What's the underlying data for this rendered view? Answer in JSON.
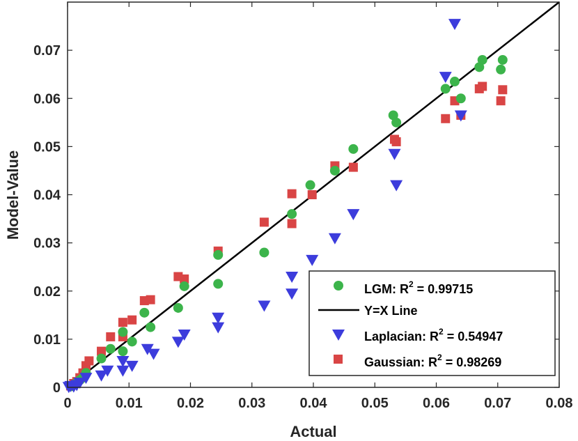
{
  "chart_data": {
    "type": "scatter",
    "xlabel": "Actual",
    "ylabel": "Model-Value",
    "xlim": [
      0,
      0.08
    ],
    "ylim": [
      0,
      0.08
    ],
    "xticks": [
      0,
      0.01,
      0.02,
      0.03,
      0.04,
      0.05,
      0.06,
      0.07,
      0.08
    ],
    "xtick_labels": [
      "0",
      "0.01",
      "0.02",
      "0.03",
      "0.04",
      "0.05",
      "0.06",
      "0.07",
      "0.08"
    ],
    "yticks": [
      0,
      0.01,
      0.02,
      0.03,
      0.04,
      0.05,
      0.06,
      0.07
    ],
    "ytick_labels": [
      "0",
      "0.01",
      "0.02",
      "0.03",
      "0.04",
      "0.05",
      "0.06",
      "0.07"
    ],
    "legend_position": "bottom-right",
    "colors": {
      "lgm": "#3cb44b",
      "laplacian": "#3c3cdc",
      "gaussian": "#d94545",
      "line": "#000000"
    },
    "series": [
      {
        "key": "lgm",
        "name": "LGM",
        "legend_prefix": "LGM: R",
        "legend_sup": "2",
        "legend_suffix": " = 0.99715",
        "marker": "circle",
        "points": [
          [
            0.0005,
            0.0002
          ],
          [
            0.001,
            0.0005
          ],
          [
            0.0015,
            0.001
          ],
          [
            0.002,
            0.0015
          ],
          [
            0.0025,
            0.002
          ],
          [
            0.003,
            0.003
          ],
          [
            0.0055,
            0.006
          ],
          [
            0.007,
            0.008
          ],
          [
            0.009,
            0.0075
          ],
          [
            0.009,
            0.0115
          ],
          [
            0.0105,
            0.0095
          ],
          [
            0.0125,
            0.0155
          ],
          [
            0.0135,
            0.0125
          ],
          [
            0.018,
            0.0165
          ],
          [
            0.019,
            0.021
          ],
          [
            0.0245,
            0.0275
          ],
          [
            0.0245,
            0.0215
          ],
          [
            0.032,
            0.028
          ],
          [
            0.0365,
            0.036
          ],
          [
            0.0395,
            0.042
          ],
          [
            0.0435,
            0.045
          ],
          [
            0.0465,
            0.0495
          ],
          [
            0.053,
            0.0565
          ],
          [
            0.0535,
            0.055
          ],
          [
            0.0615,
            0.062
          ],
          [
            0.063,
            0.0635
          ],
          [
            0.064,
            0.06
          ],
          [
            0.067,
            0.0665
          ],
          [
            0.0675,
            0.068
          ],
          [
            0.0705,
            0.066
          ],
          [
            0.0708,
            0.068
          ]
        ]
      },
      {
        "key": "line",
        "name": "Y=X Line",
        "legend_label": "Y=X Line",
        "marker": "line",
        "points": [
          [
            0.0035,
            0.0035
          ],
          [
            0.08,
            0.08
          ]
        ]
      },
      {
        "key": "laplacian",
        "name": "Laplacian",
        "legend_prefix": "Laplacian: R",
        "legend_sup": "2",
        "legend_suffix": " = 0.54947",
        "marker": "triangle-down",
        "points": [
          [
            0.0002,
            0.0001
          ],
          [
            0.0005,
            0.0003
          ],
          [
            0.001,
            0.0002
          ],
          [
            0.0015,
            0.0005
          ],
          [
            0.002,
            0.001
          ],
          [
            0.003,
            0.002
          ],
          [
            0.0055,
            0.0025
          ],
          [
            0.0065,
            0.0035
          ],
          [
            0.009,
            0.0055
          ],
          [
            0.009,
            0.0035
          ],
          [
            0.0105,
            0.0045
          ],
          [
            0.013,
            0.008
          ],
          [
            0.014,
            0.007
          ],
          [
            0.018,
            0.0095
          ],
          [
            0.019,
            0.011
          ],
          [
            0.0245,
            0.0145
          ],
          [
            0.0245,
            0.0125
          ],
          [
            0.032,
            0.017
          ],
          [
            0.0365,
            0.0195
          ],
          [
            0.0365,
            0.023
          ],
          [
            0.0398,
            0.0265
          ],
          [
            0.0435,
            0.031
          ],
          [
            0.0465,
            0.036
          ],
          [
            0.0532,
            0.0485
          ],
          [
            0.0535,
            0.042
          ],
          [
            0.0615,
            0.0645
          ],
          [
            0.063,
            0.0755
          ],
          [
            0.064,
            0.0565
          ]
        ]
      },
      {
        "key": "gaussian",
        "name": "Gaussian",
        "legend_prefix": "Gaussian: R",
        "legend_sup": "2",
        "legend_suffix": " = 0.98269",
        "marker": "square",
        "points": [
          [
            0.0005,
            0.0003
          ],
          [
            0.001,
            0.0008
          ],
          [
            0.0015,
            0.0012
          ],
          [
            0.002,
            0.002
          ],
          [
            0.0025,
            0.003
          ],
          [
            0.003,
            0.0045
          ],
          [
            0.0035,
            0.0055
          ],
          [
            0.0055,
            0.0075
          ],
          [
            0.007,
            0.0105
          ],
          [
            0.009,
            0.0105
          ],
          [
            0.009,
            0.0135
          ],
          [
            0.0105,
            0.014
          ],
          [
            0.0125,
            0.018
          ],
          [
            0.0135,
            0.0182
          ],
          [
            0.018,
            0.023
          ],
          [
            0.019,
            0.0225
          ],
          [
            0.0245,
            0.0283
          ],
          [
            0.032,
            0.0343
          ],
          [
            0.0365,
            0.034
          ],
          [
            0.0365,
            0.0402
          ],
          [
            0.0398,
            0.04
          ],
          [
            0.0435,
            0.046
          ],
          [
            0.0465,
            0.0457
          ],
          [
            0.0535,
            0.051
          ],
          [
            0.0532,
            0.0515
          ],
          [
            0.0615,
            0.0558
          ],
          [
            0.063,
            0.0595
          ],
          [
            0.064,
            0.0565
          ],
          [
            0.067,
            0.062
          ],
          [
            0.0675,
            0.0625
          ],
          [
            0.0705,
            0.0595
          ],
          [
            0.0708,
            0.0618
          ]
        ]
      }
    ]
  }
}
